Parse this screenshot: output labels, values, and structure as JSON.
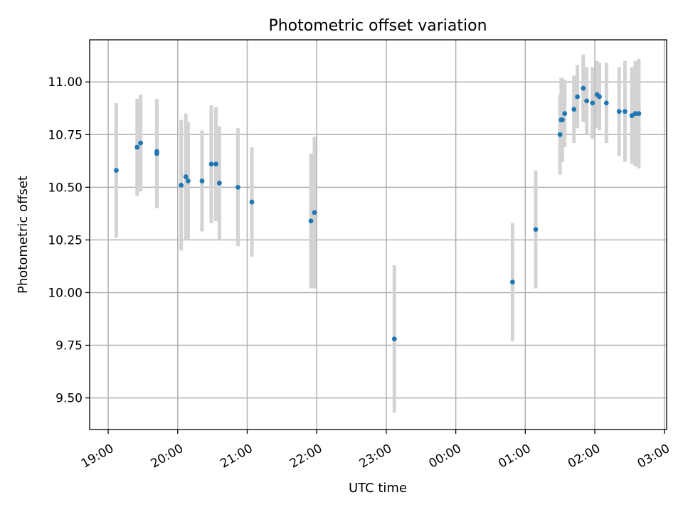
{
  "chart_data": {
    "type": "scatter",
    "title": "Photometric offset variation",
    "xlabel": "UTC time",
    "ylabel": "Photometric offset",
    "x_ticks": [
      "19:00",
      "20:00",
      "21:00",
      "22:00",
      "23:00",
      "00:00",
      "01:00",
      "02:00",
      "03:00"
    ],
    "x_tick_hours": [
      19,
      20,
      21,
      22,
      23,
      24,
      25,
      26,
      27
    ],
    "y_ticks": [
      "9.50",
      "9.75",
      "10.00",
      "10.25",
      "10.50",
      "10.75",
      "11.00"
    ],
    "y_tick_values": [
      9.5,
      9.75,
      10.0,
      10.25,
      10.5,
      10.75,
      11.0
    ],
    "xlim": [
      "18:44",
      "03:02"
    ],
    "ylim": [
      9.35,
      11.2
    ],
    "grid": true,
    "x_tick_rotation": "rotated ~30°",
    "colors": {
      "point": "#1f77b4",
      "error_bar": "#d3d3d3",
      "grid": "#b0b0b0"
    },
    "points": [
      {
        "t": "19:07",
        "y": 10.58,
        "err": 0.32
      },
      {
        "t": "19:25",
        "y": 10.69,
        "err": 0.23
      },
      {
        "t": "19:28",
        "y": 10.71,
        "err": 0.23
      },
      {
        "t": "19:42",
        "y": 10.67,
        "err": 0.25
      },
      {
        "t": "19:42",
        "y": 10.66,
        "err": 0.26
      },
      {
        "t": "20:03",
        "y": 10.51,
        "err": 0.31
      },
      {
        "t": "20:07",
        "y": 10.55,
        "err": 0.3
      },
      {
        "t": "20:09",
        "y": 10.53,
        "err": 0.28
      },
      {
        "t": "20:21",
        "y": 10.53,
        "err": 0.24
      },
      {
        "t": "20:29",
        "y": 10.61,
        "err": 0.28
      },
      {
        "t": "20:33",
        "y": 10.61,
        "err": 0.27
      },
      {
        "t": "20:36",
        "y": 10.52,
        "err": 0.27
      },
      {
        "t": "20:52",
        "y": 10.5,
        "err": 0.28
      },
      {
        "t": "21:04",
        "y": 10.43,
        "err": 0.26
      },
      {
        "t": "21:55",
        "y": 10.34,
        "err": 0.32
      },
      {
        "t": "21:58",
        "y": 10.38,
        "err": 0.36
      },
      {
        "t": "23:07",
        "y": 9.78,
        "err": 0.35
      },
      {
        "t": "00:49",
        "y": 10.05,
        "err": 0.28
      },
      {
        "t": "01:09",
        "y": 10.3,
        "err": 0.28
      },
      {
        "t": "01:30",
        "y": 10.75,
        "err": 0.19
      },
      {
        "t": "01:31",
        "y": 10.82,
        "err": 0.2
      },
      {
        "t": "01:32",
        "y": 10.82,
        "err": 0.2
      },
      {
        "t": "01:34",
        "y": 10.85,
        "err": 0.16
      },
      {
        "t": "01:42",
        "y": 10.87,
        "err": 0.16
      },
      {
        "t": "01:45",
        "y": 10.93,
        "err": 0.15
      },
      {
        "t": "01:50",
        "y": 10.97,
        "err": 0.16
      },
      {
        "t": "01:53",
        "y": 10.91,
        "err": 0.16
      },
      {
        "t": "01:58",
        "y": 10.9,
        "err": 0.17
      },
      {
        "t": "02:02",
        "y": 10.94,
        "err": 0.16
      },
      {
        "t": "02:04",
        "y": 10.93,
        "err": 0.16
      },
      {
        "t": "02:10",
        "y": 10.9,
        "err": 0.19
      },
      {
        "t": "02:21",
        "y": 10.86,
        "err": 0.21
      },
      {
        "t": "02:26",
        "y": 10.86,
        "err": 0.24
      },
      {
        "t": "02:32",
        "y": 10.84,
        "err": 0.23
      },
      {
        "t": "02:35",
        "y": 10.85,
        "err": 0.25
      },
      {
        "t": "02:38",
        "y": 10.85,
        "err": 0.26
      }
    ]
  }
}
